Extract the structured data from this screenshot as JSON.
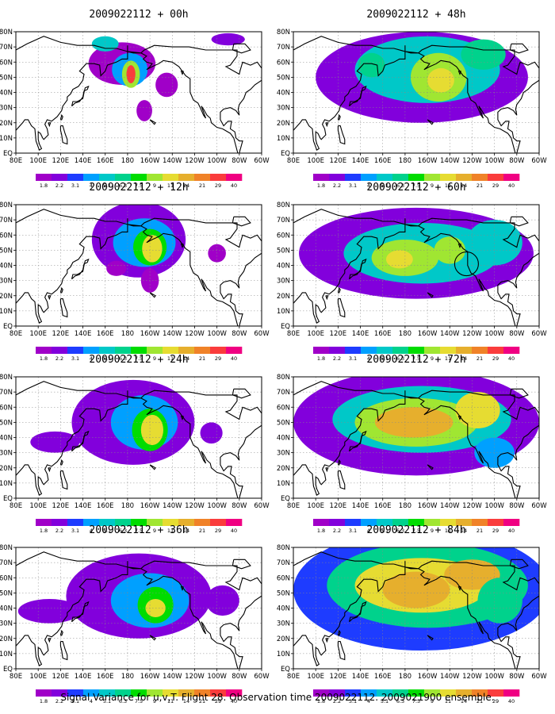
{
  "caption": "Signal Variance for u,v,T. Flight 28. Observation time 2009022112. 2009021900 ensemble.",
  "colorbar": {
    "levels": [
      "1.8",
      "2.2",
      "3.1",
      "4",
      "5.1",
      "6.3",
      "7.5",
      "9",
      "11",
      "14",
      "21",
      "29",
      "40"
    ],
    "colors": [
      "#a000c8",
      "#8200dc",
      "#1e3cff",
      "#00a0ff",
      "#00c8c8",
      "#00d28c",
      "#00dc00",
      "#a0e632",
      "#e6dc32",
      "#e6af2d",
      "#f08228",
      "#fa3c3c",
      "#f00082"
    ]
  },
  "axes": {
    "x_ticks": [
      "80E",
      "100E",
      "120E",
      "140E",
      "160E",
      "180",
      "160W",
      "140W",
      "120W",
      "100W",
      "80W",
      "60W"
    ],
    "y_ticks": [
      "80N",
      "70N",
      "60N",
      "50N",
      "40N",
      "30N",
      "20N",
      "10N",
      "EQ"
    ],
    "xlim": [
      "80E",
      "60W"
    ],
    "ylim": [
      "EQ",
      "80N"
    ]
  },
  "chart_data": [
    {
      "type": "heatmap",
      "title": "2009022112 + 00h",
      "blobs": [
        {
          "lon": 175,
          "lat": 59,
          "rlon": 30,
          "rlat": 14,
          "level": 0
        },
        {
          "lon": -178,
          "lat": 55,
          "rlon": 16,
          "rlat": 11,
          "level": 3
        },
        {
          "lon": -177,
          "lat": 52,
          "rlon": 8,
          "rlat": 9,
          "level": 7
        },
        {
          "lon": -177,
          "lat": 52,
          "rlon": 4,
          "rlat": 6,
          "level": 11
        },
        {
          "lon": 160,
          "lat": 72,
          "rlon": 12,
          "rlat": 5,
          "level": 4
        },
        {
          "lon": -165,
          "lat": 28,
          "rlon": 7,
          "rlat": 7,
          "level": 0
        },
        {
          "lon": -145,
          "lat": 45,
          "rlon": 10,
          "rlat": 8,
          "level": 0
        },
        {
          "lon": -90,
          "lat": 75,
          "rlon": 15,
          "rlat": 4,
          "level": 1
        }
      ]
    },
    {
      "type": "heatmap",
      "title": "2009022112 + 12h",
      "blobs": [
        {
          "lon": -170,
          "lat": 57,
          "rlon": 42,
          "rlat": 25,
          "level": 1
        },
        {
          "lon": -165,
          "lat": 55,
          "rlon": 28,
          "rlat": 16,
          "level": 3
        },
        {
          "lon": -160,
          "lat": 52,
          "rlon": 15,
          "rlat": 12,
          "level": 6
        },
        {
          "lon": -158,
          "lat": 51,
          "rlon": 9,
          "rlat": 9,
          "level": 8
        },
        {
          "lon": -160,
          "lat": 30,
          "rlon": 8,
          "rlat": 8,
          "level": 0
        },
        {
          "lon": -100,
          "lat": 48,
          "rlon": 8,
          "rlat": 6,
          "level": 0
        },
        {
          "lon": 170,
          "lat": 38,
          "rlon": 9,
          "rlat": 5,
          "level": 0
        }
      ]
    },
    {
      "type": "heatmap",
      "title": "2009022112 + 24h",
      "blobs": [
        {
          "lon": -175,
          "lat": 50,
          "rlon": 55,
          "rlat": 28,
          "level": 1
        },
        {
          "lon": -165,
          "lat": 50,
          "rlon": 30,
          "rlat": 18,
          "level": 3
        },
        {
          "lon": -160,
          "lat": 45,
          "rlon": 16,
          "rlat": 14,
          "level": 6
        },
        {
          "lon": -158,
          "lat": 45,
          "rlon": 10,
          "rlat": 10,
          "level": 8
        },
        {
          "lon": 115,
          "lat": 37,
          "rlon": 22,
          "rlat": 7,
          "level": 1
        },
        {
          "lon": -105,
          "lat": 43,
          "rlon": 10,
          "rlat": 7,
          "level": 1
        }
      ]
    },
    {
      "type": "heatmap",
      "title": "2009022112 + 36h",
      "blobs": [
        {
          "lon": -170,
          "lat": 48,
          "rlon": 65,
          "rlat": 28,
          "level": 1
        },
        {
          "lon": -160,
          "lat": 45,
          "rlon": 35,
          "rlat": 18,
          "level": 3
        },
        {
          "lon": -155,
          "lat": 42,
          "rlon": 16,
          "rlat": 12,
          "level": 6
        },
        {
          "lon": -155,
          "lat": 40,
          "rlon": 9,
          "rlat": 6,
          "level": 8
        },
        {
          "lon": 110,
          "lat": 38,
          "rlon": 28,
          "rlat": 8,
          "level": 1
        },
        {
          "lon": -95,
          "lat": 45,
          "rlon": 15,
          "rlat": 10,
          "level": 1
        }
      ]
    },
    {
      "type": "heatmap",
      "title": "2009022112 + 48h",
      "blobs": [
        {
          "lon": -165,
          "lat": 50,
          "rlon": 95,
          "rlat": 30,
          "level": 1
        },
        {
          "lon": -160,
          "lat": 55,
          "rlon": 65,
          "rlat": 22,
          "level": 4
        },
        {
          "lon": -150,
          "lat": 50,
          "rlon": 25,
          "rlat": 16,
          "level": 7
        },
        {
          "lon": -148,
          "lat": 48,
          "rlon": 12,
          "rlat": 8,
          "level": 8
        },
        {
          "lon": -110,
          "lat": 65,
          "rlon": 20,
          "rlat": 10,
          "level": 5
        },
        {
          "lon": 150,
          "lat": 58,
          "rlon": 12,
          "rlat": 8,
          "level": 5
        }
      ]
    },
    {
      "type": "heatmap",
      "title": "2009022112 + 60h",
      "blobs": [
        {
          "lon": -170,
          "lat": 48,
          "rlon": 105,
          "rlat": 30,
          "level": 1
        },
        {
          "lon": -165,
          "lat": 48,
          "rlon": 70,
          "rlat": 20,
          "level": 4
        },
        {
          "lon": 180,
          "lat": 45,
          "rlon": 30,
          "rlat": 12,
          "level": 7
        },
        {
          "lon": -140,
          "lat": 50,
          "rlon": 14,
          "rlat": 9,
          "level": 7
        },
        {
          "lon": 175,
          "lat": 44,
          "rlon": 12,
          "rlat": 6,
          "level": 8
        },
        {
          "lon": -100,
          "lat": 55,
          "rlon": 25,
          "rlat": 15,
          "level": 4
        }
      ]
    },
    {
      "type": "heatmap",
      "title": "2009022112 + 72h",
      "blobs": [
        {
          "lon": -170,
          "lat": 50,
          "rlon": 110,
          "rlat": 35,
          "level": 1
        },
        {
          "lon": -165,
          "lat": 52,
          "rlon": 80,
          "rlat": 22,
          "level": 4
        },
        {
          "lon": -170,
          "lat": 50,
          "rlon": 55,
          "rlat": 16,
          "level": 7
        },
        {
          "lon": -172,
          "lat": 50,
          "rlon": 35,
          "rlat": 10,
          "level": 9
        },
        {
          "lon": -115,
          "lat": 58,
          "rlon": 20,
          "rlat": 12,
          "level": 8
        },
        {
          "lon": -100,
          "lat": 30,
          "rlon": 18,
          "rlat": 10,
          "level": 3
        }
      ]
    },
    {
      "type": "heatmap",
      "title": "2009022112 + 84h",
      "blobs": [
        {
          "lon": -165,
          "lat": 52,
          "rlon": 115,
          "rlat": 40,
          "level": 2
        },
        {
          "lon": -160,
          "lat": 55,
          "rlon": 90,
          "rlat": 28,
          "level": 5
        },
        {
          "lon": -165,
          "lat": 55,
          "rlon": 60,
          "rlat": 18,
          "level": 8
        },
        {
          "lon": -170,
          "lat": 52,
          "rlon": 30,
          "rlat": 12,
          "level": 9
        },
        {
          "lon": -120,
          "lat": 62,
          "rlon": 25,
          "rlat": 10,
          "level": 9
        },
        {
          "lon": -95,
          "lat": 45,
          "rlon": 20,
          "rlat": 15,
          "level": 5
        }
      ]
    }
  ]
}
